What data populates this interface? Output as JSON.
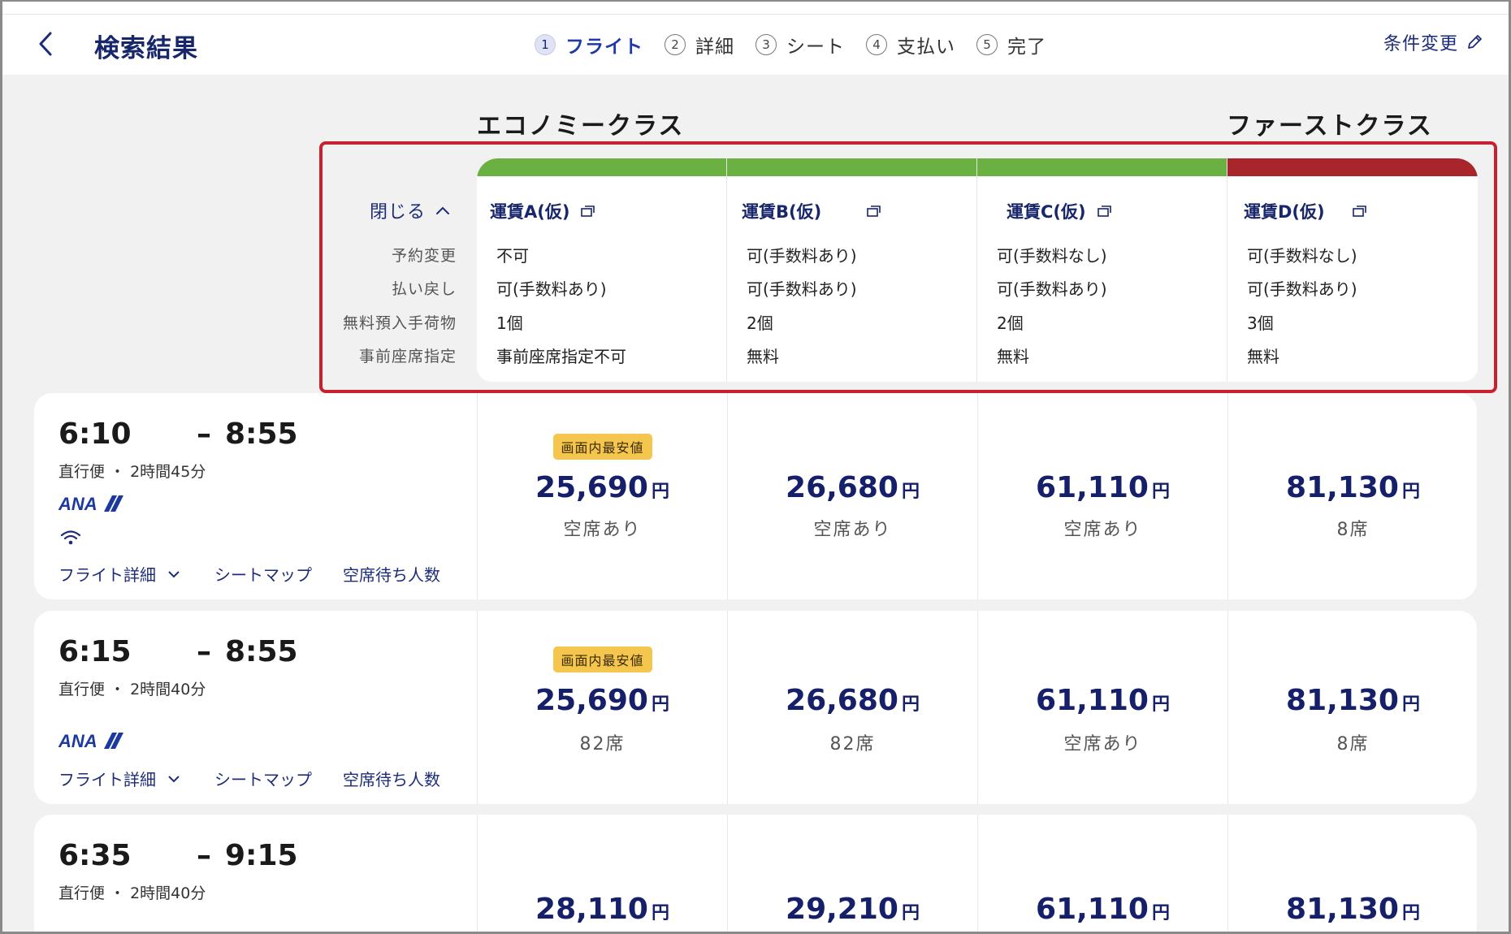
{
  "header": {
    "title": "検索結果",
    "steps": [
      {
        "num": "1",
        "label": "フライト",
        "active": true
      },
      {
        "num": "2",
        "label": "詳細"
      },
      {
        "num": "3",
        "label": "シート"
      },
      {
        "num": "4",
        "label": "支払い"
      },
      {
        "num": "5",
        "label": "完了"
      }
    ],
    "change_conditions": "条件変更"
  },
  "classes": {
    "economy": "エコノミークラス",
    "first": "ファーストクラス"
  },
  "fare_table": {
    "close_label": "閉じる",
    "row_labels": [
      "予約変更",
      "払い戻し",
      "無料預入手荷物",
      "事前座席指定"
    ],
    "fares": [
      {
        "name": "運賃A(仮)",
        "color": "#6ab042",
        "values": [
          "不可",
          "可(手数料あり)",
          "1個",
          "事前座席指定不可"
        ]
      },
      {
        "name": "運賃B(仮)",
        "color": "#6ab042",
        "values": [
          "可(手数料あり)",
          "可(手数料あり)",
          "2個",
          "無料"
        ]
      },
      {
        "name": "運賃C(仮)",
        "color": "#6ab042",
        "values": [
          "可(手数料なし)",
          "可(手数料あり)",
          "2個",
          "無料"
        ]
      },
      {
        "name": "運賃D(仮)",
        "color": "#a8262b",
        "values": [
          "可(手数料なし)",
          "可(手数料あり)",
          "3個",
          "無料"
        ]
      }
    ]
  },
  "flights": [
    {
      "depart": "6:10",
      "arrive": "8:55",
      "dash": "–",
      "sub": "直行便 ・ 2時間45分",
      "airline": "ANA",
      "wifi": true,
      "links": [
        "フライト詳細",
        "シートマップ",
        "空席待ち人数"
      ],
      "prices": [
        {
          "badge": "画面内最安値",
          "amount": "25,690",
          "unit": "円",
          "seats": "空席あり"
        },
        {
          "amount": "26,680",
          "unit": "円",
          "seats": "空席あり"
        },
        {
          "amount": "61,110",
          "unit": "円",
          "seats": "空席あり"
        },
        {
          "amount": "81,130",
          "unit": "円",
          "seats": "8席"
        }
      ]
    },
    {
      "depart": "6:15",
      "arrive": "8:55",
      "dash": "–",
      "sub": "直行便 ・ 2時間40分",
      "airline": "ANA",
      "wifi": false,
      "links": [
        "フライト詳細",
        "シートマップ",
        "空席待ち人数"
      ],
      "prices": [
        {
          "badge": "画面内最安値",
          "amount": "25,690",
          "unit": "円",
          "seats": "82席"
        },
        {
          "amount": "26,680",
          "unit": "円",
          "seats": "82席"
        },
        {
          "amount": "61,110",
          "unit": "円",
          "seats": "空席あり"
        },
        {
          "amount": "81,130",
          "unit": "円",
          "seats": "8席"
        }
      ]
    },
    {
      "depart": "6:35",
      "arrive": "9:15",
      "dash": "–",
      "sub": "直行便 ・ 2時間40分",
      "prices": [
        {
          "amount": "28,110",
          "unit": "円"
        },
        {
          "amount": "29,210",
          "unit": "円"
        },
        {
          "amount": "61,110",
          "unit": "円"
        },
        {
          "amount": "81,130",
          "unit": "円"
        }
      ]
    }
  ],
  "colors": {
    "accent": "#1c2c7a",
    "highlight": "#c8202e",
    "economy": "#6ab042",
    "first": "#a8262b",
    "badge": "#f4c64d"
  }
}
